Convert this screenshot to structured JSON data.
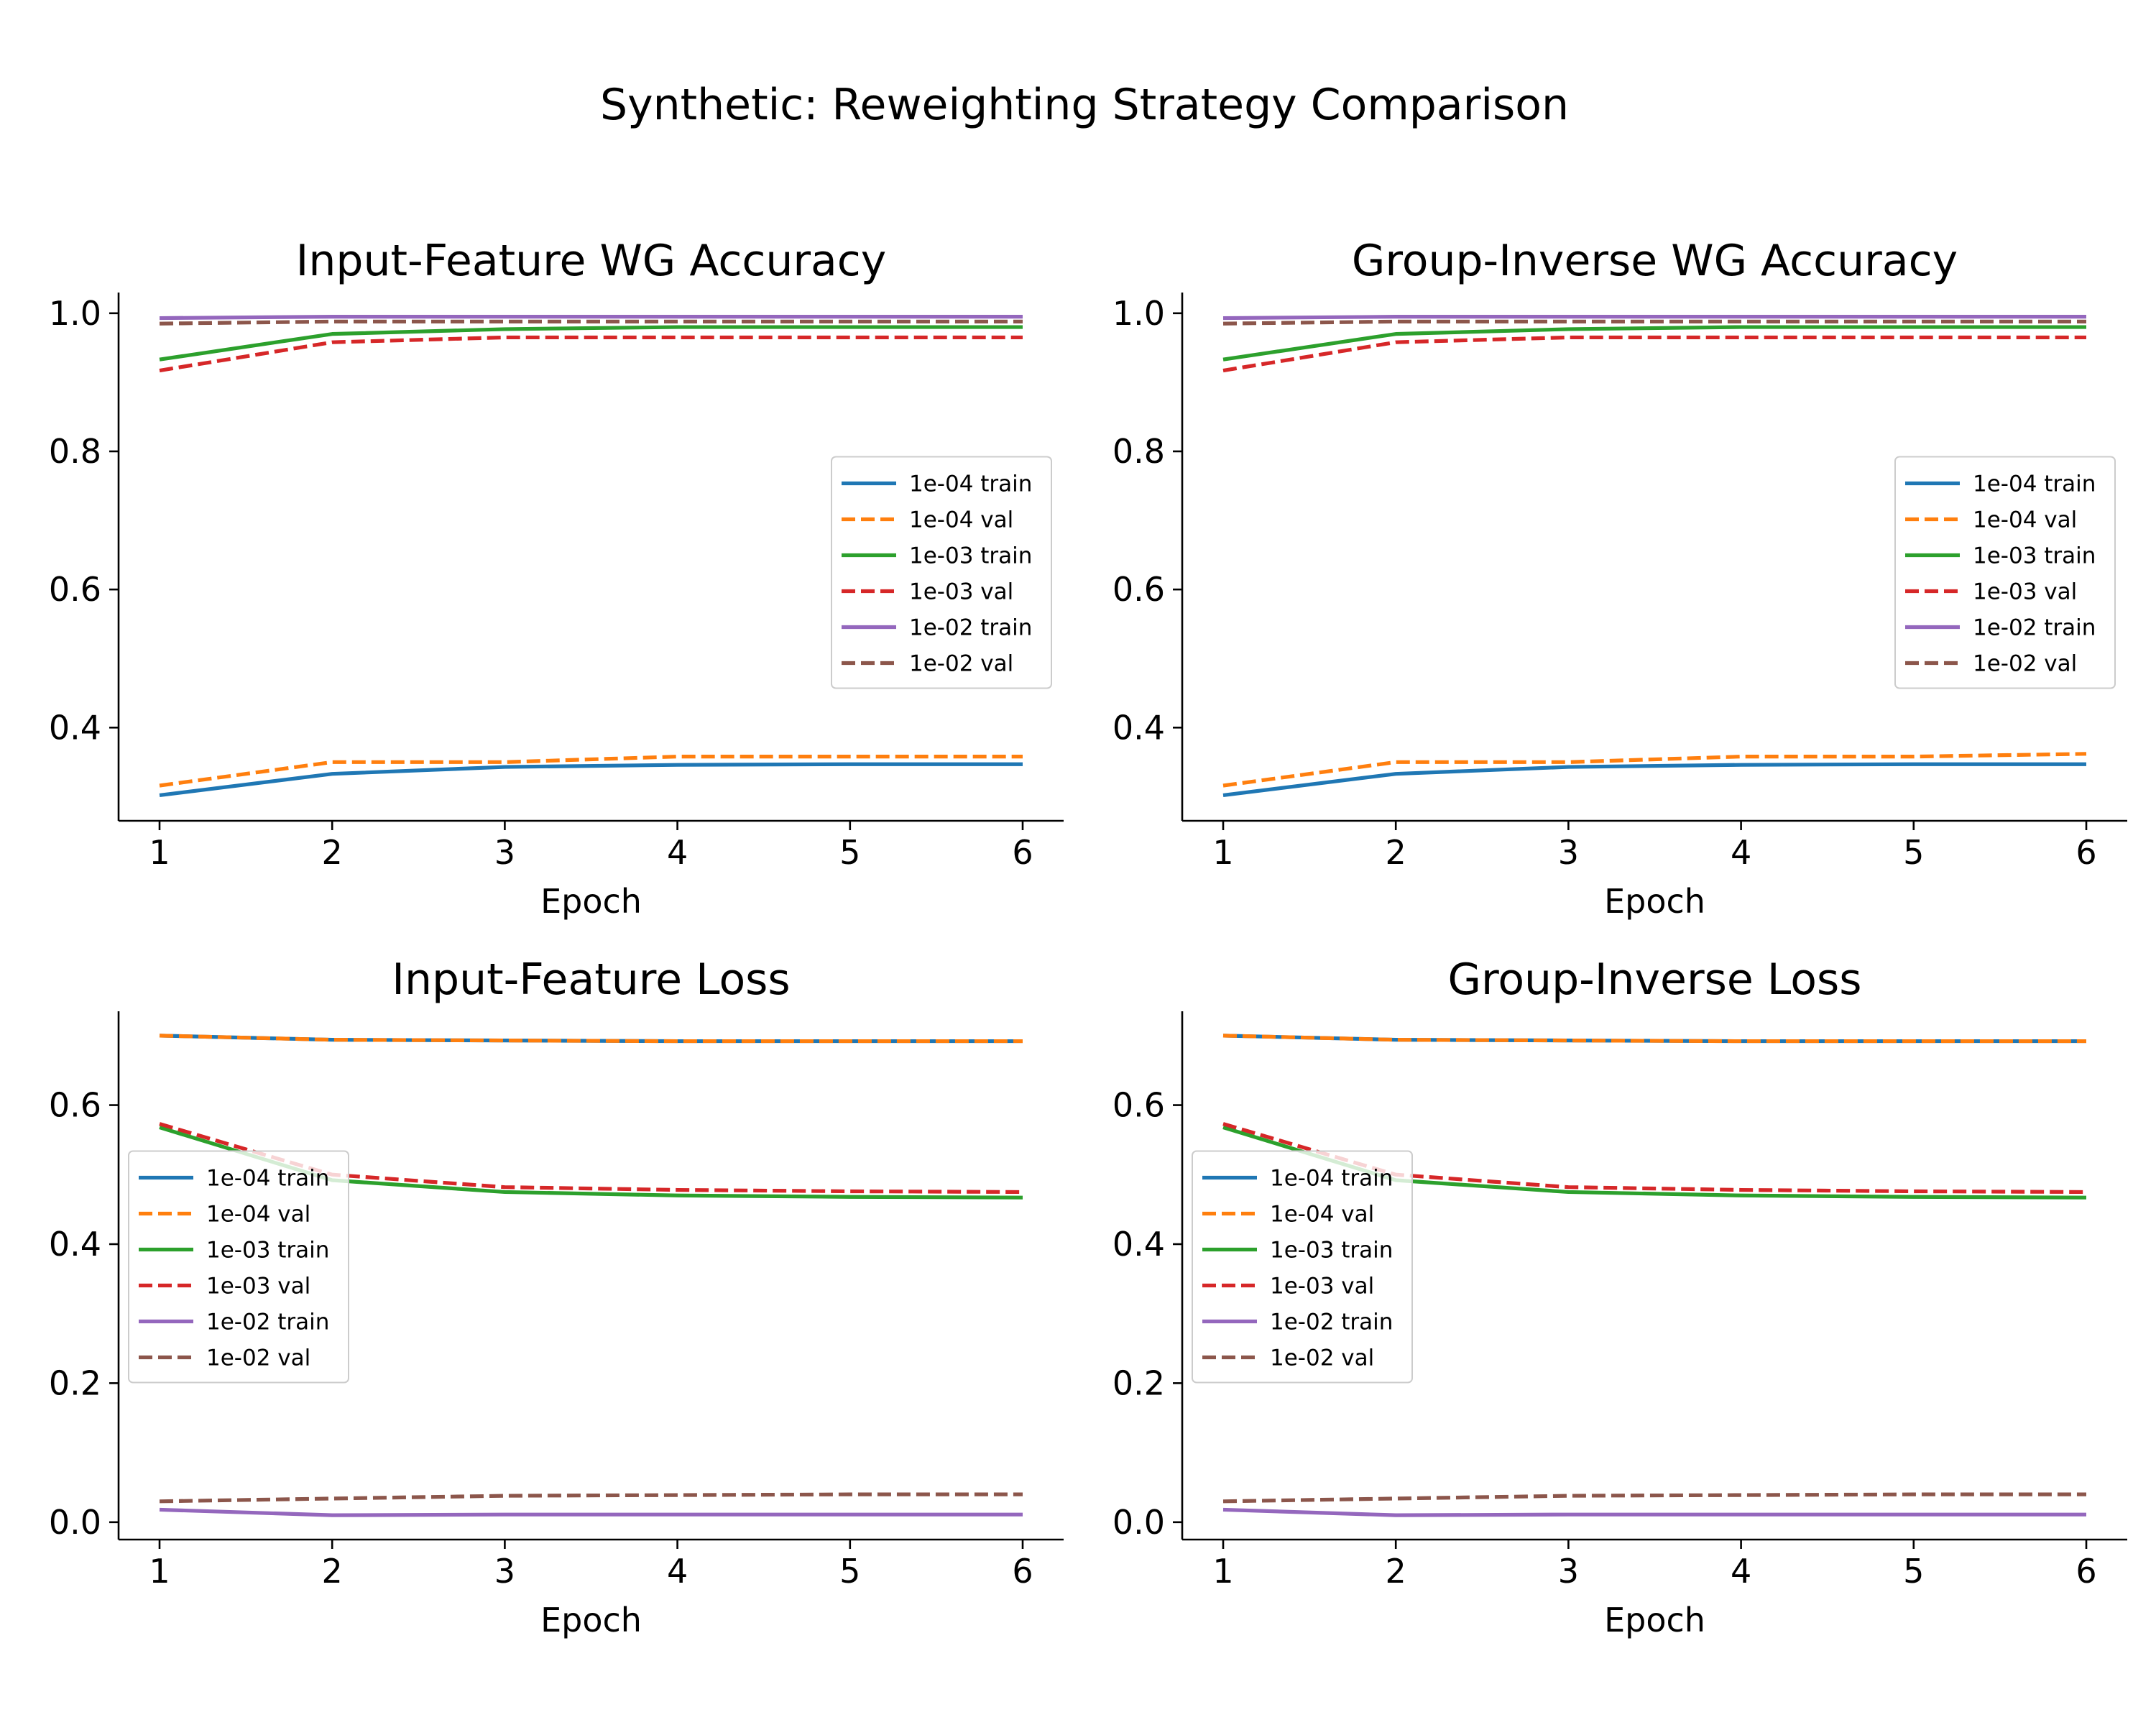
{
  "figure": {
    "title": "Synthetic: Reweighting Strategy Comparison"
  },
  "colors": {
    "1e-04 train": "#1f77b4",
    "1e-04 val": "#ff7f0e",
    "1e-03 train": "#2ca02c",
    "1e-03 val": "#d62728",
    "1e-02 train": "#9467bd",
    "1e-02 val": "#8c564b"
  },
  "chart_data": [
    {
      "type": "line",
      "title": "Input-Feature WG Accuracy",
      "xlabel": "Epoch",
      "ylabel": "",
      "x": [
        1,
        2,
        3,
        4,
        5,
        6
      ],
      "xticks": [
        1,
        2,
        3,
        4,
        5,
        6
      ],
      "yticks": [
        0.4,
        0.6,
        0.8,
        1.0
      ],
      "ylim": [
        0.265,
        1.03
      ],
      "legend": "center-right",
      "series": [
        {
          "name": "1e-04 train",
          "values": [
            0.302,
            0.333,
            0.343,
            0.346,
            0.347,
            0.347
          ]
        },
        {
          "name": "1e-04 val",
          "values": [
            0.316,
            0.35,
            0.35,
            0.358,
            0.358,
            0.358
          ]
        },
        {
          "name": "1e-03 train",
          "values": [
            0.933,
            0.97,
            0.977,
            0.98,
            0.98,
            0.98
          ]
        },
        {
          "name": "1e-03 val",
          "values": [
            0.917,
            0.958,
            0.965,
            0.965,
            0.965,
            0.965
          ]
        },
        {
          "name": "1e-02 train",
          "values": [
            0.993,
            0.995,
            0.995,
            0.995,
            0.995,
            0.995
          ]
        },
        {
          "name": "1e-02 val",
          "values": [
            0.985,
            0.988,
            0.988,
            0.988,
            0.988,
            0.988
          ]
        }
      ]
    },
    {
      "type": "line",
      "title": "Group-Inverse WG Accuracy",
      "xlabel": "Epoch",
      "ylabel": "",
      "x": [
        1,
        2,
        3,
        4,
        5,
        6
      ],
      "xticks": [
        1,
        2,
        3,
        4,
        5,
        6
      ],
      "yticks": [
        0.4,
        0.6,
        0.8,
        1.0
      ],
      "ylim": [
        0.265,
        1.03
      ],
      "legend": "center-right",
      "series": [
        {
          "name": "1e-04 train",
          "values": [
            0.302,
            0.333,
            0.343,
            0.346,
            0.347,
            0.347
          ]
        },
        {
          "name": "1e-04 val",
          "values": [
            0.316,
            0.35,
            0.35,
            0.358,
            0.358,
            0.362
          ]
        },
        {
          "name": "1e-03 train",
          "values": [
            0.933,
            0.97,
            0.977,
            0.98,
            0.98,
            0.98
          ]
        },
        {
          "name": "1e-03 val",
          "values": [
            0.917,
            0.958,
            0.965,
            0.965,
            0.965,
            0.965
          ]
        },
        {
          "name": "1e-02 train",
          "values": [
            0.993,
            0.995,
            0.995,
            0.995,
            0.995,
            0.995
          ]
        },
        {
          "name": "1e-02 val",
          "values": [
            0.985,
            0.988,
            0.988,
            0.988,
            0.988,
            0.988
          ]
        }
      ]
    },
    {
      "type": "line",
      "title": "Input-Feature Loss",
      "xlabel": "Epoch",
      "ylabel": "",
      "x": [
        1,
        2,
        3,
        4,
        5,
        6
      ],
      "xticks": [
        1,
        2,
        3,
        4,
        5,
        6
      ],
      "yticks": [
        0.0,
        0.2,
        0.4,
        0.6
      ],
      "ylim": [
        -0.025,
        0.735
      ],
      "legend": "center-left",
      "series": [
        {
          "name": "1e-04 train",
          "values": [
            0.7,
            0.694,
            0.693,
            0.692,
            0.692,
            0.692
          ]
        },
        {
          "name": "1e-04 val",
          "values": [
            0.7,
            0.694,
            0.693,
            0.692,
            0.692,
            0.692
          ]
        },
        {
          "name": "1e-03 train",
          "values": [
            0.568,
            0.492,
            0.475,
            0.47,
            0.468,
            0.467
          ]
        },
        {
          "name": "1e-03 val",
          "values": [
            0.573,
            0.5,
            0.482,
            0.478,
            0.476,
            0.475
          ]
        },
        {
          "name": "1e-02 train",
          "values": [
            0.018,
            0.01,
            0.011,
            0.011,
            0.011,
            0.011
          ]
        },
        {
          "name": "1e-02 val",
          "values": [
            0.03,
            0.034,
            0.038,
            0.039,
            0.04,
            0.04
          ]
        }
      ]
    },
    {
      "type": "line",
      "title": "Group-Inverse Loss",
      "xlabel": "Epoch",
      "ylabel": "",
      "x": [
        1,
        2,
        3,
        4,
        5,
        6
      ],
      "xticks": [
        1,
        2,
        3,
        4,
        5,
        6
      ],
      "yticks": [
        0.0,
        0.2,
        0.4,
        0.6
      ],
      "ylim": [
        -0.025,
        0.735
      ],
      "legend": "center-left",
      "series": [
        {
          "name": "1e-04 train",
          "values": [
            0.7,
            0.694,
            0.693,
            0.692,
            0.692,
            0.692
          ]
        },
        {
          "name": "1e-04 val",
          "values": [
            0.7,
            0.694,
            0.693,
            0.692,
            0.692,
            0.692
          ]
        },
        {
          "name": "1e-03 train",
          "values": [
            0.568,
            0.492,
            0.475,
            0.47,
            0.468,
            0.467
          ]
        },
        {
          "name": "1e-03 val",
          "values": [
            0.573,
            0.5,
            0.482,
            0.478,
            0.476,
            0.475
          ]
        },
        {
          "name": "1e-02 train",
          "values": [
            0.018,
            0.01,
            0.011,
            0.011,
            0.011,
            0.011
          ]
        },
        {
          "name": "1e-02 val",
          "values": [
            0.03,
            0.034,
            0.038,
            0.039,
            0.04,
            0.04
          ]
        }
      ]
    }
  ]
}
